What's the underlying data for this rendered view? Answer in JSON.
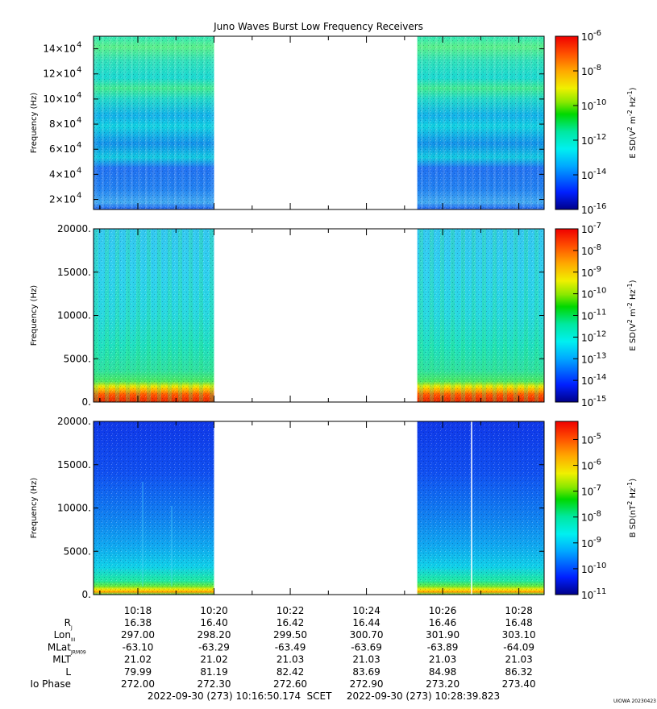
{
  "chart_data": {
    "type": "heatmap",
    "title": "Juno Waves Burst Low Frequency Receivers",
    "time_range": {
      "start": "2022-09-30 (273) 10:16:50.174",
      "end": "2022-09-30 (273) 10:28:39.823",
      "system": "SCET"
    },
    "xlim": [
      "10:16:50.174",
      "10:28:39.823"
    ],
    "x_ticks": [
      "10:18",
      "10:20",
      "10:22",
      "10:24",
      "10:26",
      "10:28"
    ],
    "data_gap": [
      "10:20:00",
      "10:25:20"
    ],
    "panels": [
      {
        "ylabel": "Frequency (Hz)",
        "ylim": [
          12000,
          150000
        ],
        "yticks": [
          {
            "mant": "2",
            "exp": "4",
            "v": 20000
          },
          {
            "mant": "4",
            "exp": "4",
            "v": 40000
          },
          {
            "mant": "6",
            "exp": "4",
            "v": 60000
          },
          {
            "mant": "8",
            "exp": "4",
            "v": 80000
          },
          {
            "mant": "10",
            "exp": "4",
            "v": 100000
          },
          {
            "mant": "12",
            "exp": "4",
            "v": 120000
          },
          {
            "mant": "14",
            "exp": "4",
            "v": 140000
          }
        ],
        "colorbar": {
          "label_parts": [
            "E SD(V",
            "2",
            " m",
            "-2",
            " Hz",
            "-1",
            ")"
          ],
          "range_exp": [
            -16,
            -6
          ],
          "ticks": [
            "-6",
            "-8",
            "-10",
            "-12",
            "-14",
            "-16"
          ]
        }
      },
      {
        "ylabel": "Frequency (Hz)",
        "ylim": [
          0,
          20000
        ],
        "yticks": [
          {
            "label": "0.",
            "v": 0
          },
          {
            "label": "5000.",
            "v": 5000
          },
          {
            "label": "10000.",
            "v": 10000
          },
          {
            "label": "15000.",
            "v": 15000
          },
          {
            "label": "20000.",
            "v": 20000
          }
        ],
        "colorbar": {
          "label_parts": [
            "E SD(V",
            "2",
            " m",
            "-2",
            " Hz",
            "-1",
            ")"
          ],
          "range_exp": [
            -15,
            -7
          ],
          "ticks": [
            "-7",
            "-8",
            "-9",
            "-10",
            "-11",
            "-12",
            "-13",
            "-14",
            "-15"
          ]
        }
      },
      {
        "ylabel": "Frequency (Hz)",
        "ylim": [
          0,
          20000
        ],
        "yticks": [
          {
            "label": "0.",
            "v": 0
          },
          {
            "label": "5000.",
            "v": 5000
          },
          {
            "label": "10000.",
            "v": 10000
          },
          {
            "label": "15000.",
            "v": 15000
          },
          {
            "label": "20000.",
            "v": 20000
          }
        ],
        "colorbar": {
          "label_parts": [
            "B SD(nT",
            "2",
            " Hz",
            "-1",
            ")"
          ],
          "range_exp": [
            -11,
            -4.3
          ],
          "ticks": [
            "-5",
            "-6",
            "-7",
            "-8",
            "-9",
            "-10",
            "-11"
          ]
        }
      }
    ],
    "ephemeris": [
      {
        "label": "R",
        "sub": "J",
        "values": [
          "16.38",
          "16.40",
          "16.42",
          "16.44",
          "16.46",
          "16.48"
        ]
      },
      {
        "label": "Lon",
        "sub": "III",
        "values": [
          "297.00",
          "298.20",
          "299.50",
          "300.70",
          "301.90",
          "303.10"
        ]
      },
      {
        "label": "MLat",
        "sub": "JRM09",
        "values": [
          "-63.10",
          "-63.29",
          "-63.49",
          "-63.69",
          "-63.89",
          "-64.09"
        ]
      },
      {
        "label": "MLT",
        "sub": "",
        "values": [
          "21.02",
          "21.02",
          "21.03",
          "21.03",
          "21.03",
          "21.03"
        ]
      },
      {
        "label": "L",
        "sub": "",
        "values": [
          "79.99",
          "81.19",
          "82.42",
          "83.69",
          "84.98",
          "86.32"
        ]
      },
      {
        "label": "Io Phase",
        "sub": "",
        "values": [
          "272.00",
          "272.30",
          "272.60",
          "272.90",
          "273.20",
          "273.40"
        ]
      }
    ],
    "credit": "UIOWA 20230423"
  }
}
